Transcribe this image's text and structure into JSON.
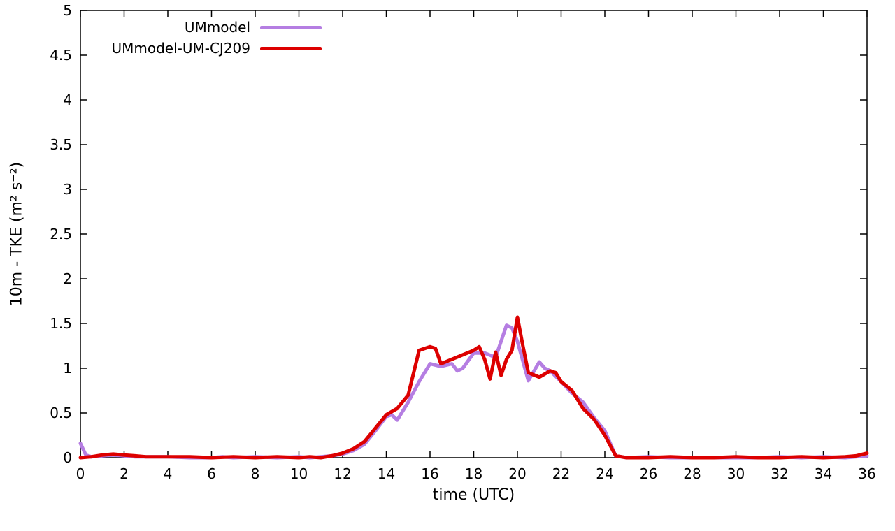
{
  "chart_data": {
    "type": "line",
    "title": "",
    "xlabel": "time (UTC)",
    "ylabel": "10m - TKE (m² s⁻²)",
    "xlim": [
      0,
      36
    ],
    "ylim": [
      0,
      5
    ],
    "grid": false,
    "legend_position": "top-left-inside",
    "axis_color": "#000000",
    "background_color": "#ffffff",
    "xticks": [
      0,
      2,
      4,
      6,
      8,
      10,
      12,
      14,
      16,
      18,
      20,
      22,
      24,
      26,
      28,
      30,
      32,
      34,
      36
    ],
    "xtick_labels": [
      "0",
      "2",
      "4",
      "6",
      "8",
      "10",
      "12",
      "14",
      "16",
      "18",
      "20",
      "22",
      "24",
      "26",
      "28",
      "30",
      "32",
      "34",
      "36"
    ],
    "yticks": [
      0,
      0.5,
      1,
      1.5,
      2,
      2.5,
      3,
      3.5,
      4,
      4.5,
      5
    ],
    "ytick_labels": [
      "0",
      "0.5",
      "1",
      "1.5",
      "2",
      "2.5",
      "3",
      "3.5",
      "4",
      "4.5",
      "5"
    ],
    "series": [
      {
        "name": "UMmodel",
        "color": "#b57ee2",
        "width": 5,
        "points": [
          [
            0,
            0.16
          ],
          [
            0.25,
            0.03
          ],
          [
            0.5,
            0.01
          ],
          [
            1,
            0.02
          ],
          [
            1.5,
            0.03
          ],
          [
            2,
            0.02
          ],
          [
            2.5,
            0.01
          ],
          [
            3,
            0.01
          ],
          [
            4,
            0.01
          ],
          [
            5,
            0.0
          ],
          [
            6,
            0.0
          ],
          [
            6.5,
            0.01
          ],
          [
            7,
            0.0
          ],
          [
            8,
            0.01
          ],
          [
            9,
            0.0
          ],
          [
            10,
            0.01
          ],
          [
            10.5,
            0.0
          ],
          [
            11,
            0.01
          ],
          [
            11.5,
            0.02
          ],
          [
            12,
            0.04
          ],
          [
            12.5,
            0.08
          ],
          [
            13,
            0.15
          ],
          [
            13.5,
            0.3
          ],
          [
            14,
            0.46
          ],
          [
            14.25,
            0.48
          ],
          [
            14.5,
            0.42
          ],
          [
            15,
            0.62
          ],
          [
            15.5,
            0.85
          ],
          [
            16,
            1.05
          ],
          [
            16.5,
            1.02
          ],
          [
            17,
            1.05
          ],
          [
            17.25,
            0.97
          ],
          [
            17.5,
            1.0
          ],
          [
            18,
            1.17
          ],
          [
            18.5,
            1.17
          ],
          [
            19,
            1.12
          ],
          [
            19.5,
            1.48
          ],
          [
            19.75,
            1.45
          ],
          [
            20,
            1.3
          ],
          [
            20.5,
            0.86
          ],
          [
            21,
            1.07
          ],
          [
            21.25,
            1.0
          ],
          [
            21.5,
            0.97
          ],
          [
            22,
            0.85
          ],
          [
            22.5,
            0.72
          ],
          [
            23,
            0.62
          ],
          [
            23.5,
            0.45
          ],
          [
            24,
            0.3
          ],
          [
            24.5,
            0.02
          ],
          [
            25,
            0.0
          ],
          [
            26,
            0.01
          ],
          [
            27,
            0.0
          ],
          [
            28,
            0.0
          ],
          [
            29,
            0.0
          ],
          [
            30,
            0.0
          ],
          [
            31,
            0.0
          ],
          [
            32,
            0.01
          ],
          [
            33,
            0.0
          ],
          [
            34,
            0.01
          ],
          [
            35,
            0.0
          ],
          [
            36,
            0.02
          ]
        ]
      },
      {
        "name": "UMmodel-UM-CJ209",
        "color": "#dd0000",
        "width": 5,
        "points": [
          [
            0,
            0.0
          ],
          [
            0.5,
            0.01
          ],
          [
            1,
            0.03
          ],
          [
            1.5,
            0.04
          ],
          [
            2,
            0.03
          ],
          [
            2.5,
            0.02
          ],
          [
            3,
            0.01
          ],
          [
            4,
            0.01
          ],
          [
            5,
            0.01
          ],
          [
            6,
            0.0
          ],
          [
            7,
            0.01
          ],
          [
            8,
            0.0
          ],
          [
            9,
            0.01
          ],
          [
            10,
            0.0
          ],
          [
            10.5,
            0.01
          ],
          [
            11,
            0.0
          ],
          [
            11.5,
            0.02
          ],
          [
            12,
            0.05
          ],
          [
            12.5,
            0.1
          ],
          [
            13,
            0.18
          ],
          [
            13.5,
            0.33
          ],
          [
            14,
            0.48
          ],
          [
            14.5,
            0.55
          ],
          [
            15,
            0.7
          ],
          [
            15.25,
            0.95
          ],
          [
            15.5,
            1.2
          ],
          [
            16,
            1.24
          ],
          [
            16.25,
            1.22
          ],
          [
            16.5,
            1.05
          ],
          [
            17,
            1.1
          ],
          [
            17.5,
            1.15
          ],
          [
            18,
            1.2
          ],
          [
            18.25,
            1.24
          ],
          [
            18.5,
            1.1
          ],
          [
            18.75,
            0.88
          ],
          [
            19,
            1.18
          ],
          [
            19.25,
            0.92
          ],
          [
            19.5,
            1.1
          ],
          [
            19.75,
            1.2
          ],
          [
            20,
            1.57
          ],
          [
            20.25,
            1.25
          ],
          [
            20.5,
            0.95
          ],
          [
            21,
            0.9
          ],
          [
            21.5,
            0.97
          ],
          [
            21.75,
            0.95
          ],
          [
            22,
            0.85
          ],
          [
            22.5,
            0.75
          ],
          [
            23,
            0.55
          ],
          [
            23.5,
            0.43
          ],
          [
            24,
            0.25
          ],
          [
            24.5,
            0.02
          ],
          [
            25,
            0.0
          ],
          [
            26,
            0.0
          ],
          [
            27,
            0.01
          ],
          [
            28,
            0.0
          ],
          [
            29,
            0.0
          ],
          [
            30,
            0.01
          ],
          [
            31,
            0.0
          ],
          [
            32,
            0.0
          ],
          [
            33,
            0.01
          ],
          [
            34,
            0.0
          ],
          [
            35,
            0.01
          ],
          [
            35.5,
            0.02
          ],
          [
            36,
            0.05
          ]
        ]
      }
    ]
  }
}
